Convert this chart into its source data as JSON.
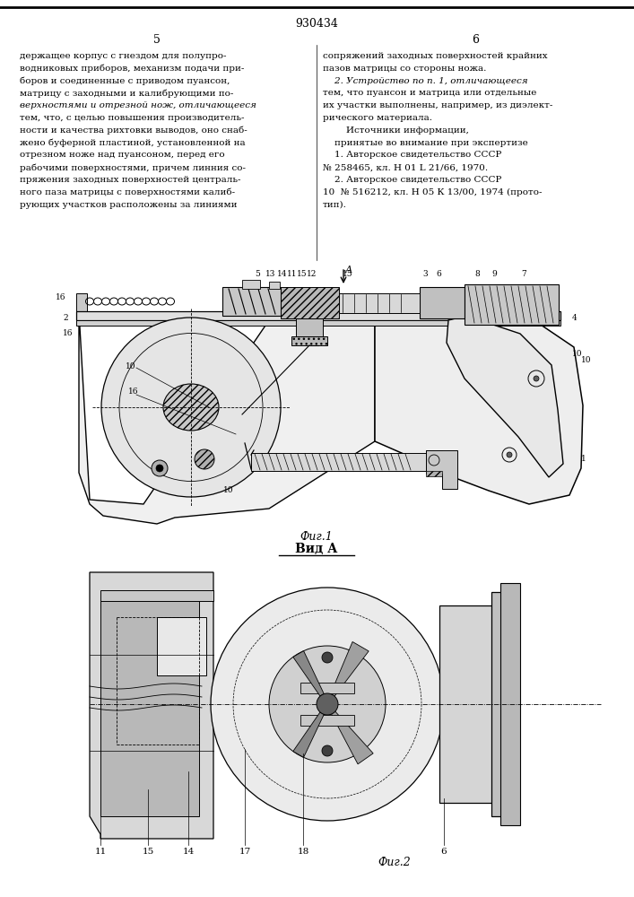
{
  "page_number_center": "930434",
  "col_left": "5",
  "col_right": "6",
  "text_left": [
    "держащее корпус с гнездом для полупро-",
    "водниковых приборов, механизм подачи при-",
    "боров и соединенные с приводом пуансон,",
    "матрицу с заходными и калибрующими по-",
    "верхностями и отрезной нож, отличающееся",
    "тем, что, с целью повышения производитель-",
    "ности и качества рихтовки выводов, оно снаб-",
    "жено буферной пластиной, установленной на",
    "отрезном ноже над пуансоном, перед его",
    "рабочими поверхностями, причем линния со-",
    "пряжения заходных поверхностей централь-",
    "ного паза матрицы с поверхностями калиб-",
    "рующих участков расположены за линиями"
  ],
  "text_right": [
    "сопряжений заходных поверхностей крайних",
    "пазов матрицы со стороны ножа.",
    "    2. Устройство по п. 1, отличающееся",
    "тем, что пуансон и матрица или отдельные",
    "их участки выполнены, например, из диэлект-",
    "рического материала.",
    "        Источники информации,",
    "    принятые во внимание при экспертизе",
    "    1. Авторское свидетельство СССР",
    "№ 258465, кл. Н 01 L 21/66, 1970.",
    "    2. Авторское свидетельство СССР",
    "10  № 516212, кл. Н 05 К 13/00, 1974 (прото-",
    "тип)."
  ],
  "fig1_label": "Фиг.1",
  "vid_a_label": "Вид А",
  "fig2_label": "Фиг.2",
  "background_color": "#ffffff"
}
